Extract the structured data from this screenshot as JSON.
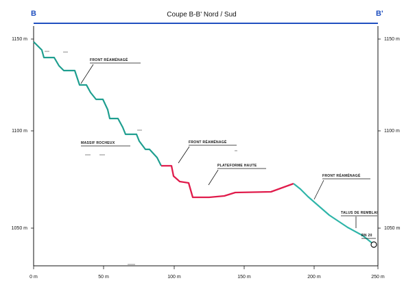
{
  "section": {
    "title": "Coupe B-B' Nord / Sud",
    "start_label": "B",
    "end_label": "B'",
    "line_color": "#1f4fbf"
  },
  "axes": {
    "x_ticks": [
      "0 m",
      "50 m",
      "100 m",
      "150 m",
      "200 m",
      "250 m"
    ],
    "y_left_ticks": [
      "1150 m",
      "1100 m",
      "1050 m"
    ],
    "y_right_ticks": [
      "1150 m",
      "1100 m",
      "1050 m"
    ]
  },
  "profile_colors": {
    "front_face": "#1e9e8f",
    "platform": "#e01b4b",
    "slope": "#2fb5a9"
  },
  "annotations": [
    {
      "key": "front_initial",
      "label": "FRONT RÉAMÉNAGÉ"
    },
    {
      "key": "massif",
      "label": "MASSIF ROCHEUX"
    },
    {
      "key": "front_middle",
      "label": "FRONT RÉAMÉNAGÉ"
    },
    {
      "key": "platform_high",
      "label": "PLATEFORME HAUTE"
    },
    {
      "key": "front_right",
      "label": "FRONT RÉAMÉNAGÉ"
    },
    {
      "key": "talus",
      "label": "TALUS DE REMBLAI"
    },
    {
      "key": "base",
      "label": "RN 20"
    }
  ]
}
